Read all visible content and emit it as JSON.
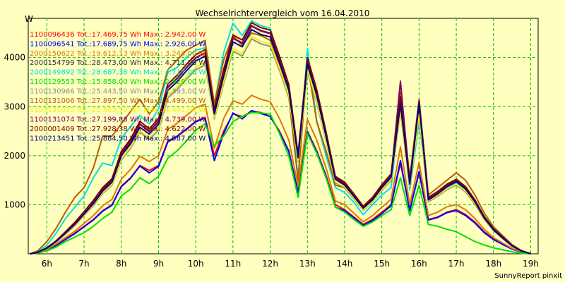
{
  "chart_data": {
    "type": "line",
    "title": "Wechselrichtervergleich vom 16.04.2010",
    "ylabel": "W",
    "xlabel": "",
    "x_ticks": [
      "6h",
      "7h",
      "8h",
      "9h",
      "10h",
      "11h",
      "12h",
      "13h",
      "14h",
      "15h",
      "16h",
      "17h",
      "18h",
      "19h"
    ],
    "y_ticks": [
      1000,
      2000,
      3000,
      4000
    ],
    "xlim": [
      5.5,
      19.2
    ],
    "ylim": [
      0,
      4800
    ],
    "grid": true,
    "legend_placement": "top-left",
    "x": [
      5.55,
      5.75,
      6.0,
      6.25,
      6.5,
      6.75,
      7.0,
      7.25,
      7.5,
      7.75,
      8.0,
      8.25,
      8.5,
      8.75,
      9.0,
      9.25,
      9.5,
      9.75,
      10.0,
      10.25,
      10.5,
      10.75,
      11.0,
      11.25,
      11.5,
      11.75,
      12.0,
      12.25,
      12.5,
      12.75,
      13.0,
      13.25,
      13.5,
      13.75,
      14.0,
      14.25,
      14.5,
      14.75,
      15.0,
      15.25,
      15.5,
      15.75,
      16.0,
      16.25,
      16.5,
      16.75,
      17.0,
      17.25,
      17.5,
      17.75,
      18.0,
      18.25,
      18.5,
      18.75,
      19.0
    ],
    "series": [
      {
        "name": "1100096436 Tot.:17.469,75 Wh Max.: 2.942,00 W",
        "color": "#ff0000",
        "values": [
          0,
          20,
          80,
          180,
          300,
          420,
          560,
          700,
          880,
          1000,
          1380,
          1550,
          1800,
          1700,
          1800,
          2300,
          2400,
          2550,
          2700,
          2780,
          2000,
          2500,
          2850,
          2800,
          2900,
          2880,
          2800,
          2500,
          2100,
          1250,
          2500,
          2100,
          1600,
          1000,
          900,
          750,
          600,
          700,
          850,
          1000,
          1850,
          900,
          1650,
          700,
          750,
          850,
          900,
          800,
          650,
          450,
          300,
          200,
          100,
          40,
          0
        ]
      },
      {
        "name": "1100096541 Tot.:17.689,75 Wh Max.: 2.926,00 W",
        "color": "#0000ff",
        "values": [
          0,
          20,
          75,
          170,
          290,
          410,
          550,
          690,
          870,
          990,
          1370,
          1540,
          1790,
          1650,
          1780,
          2280,
          2390,
          2540,
          2690,
          2770,
          1900,
          2450,
          2870,
          2750,
          2920,
          2860,
          2800,
          2480,
          2090,
          1250,
          2480,
          2080,
          1580,
          950,
          880,
          730,
          580,
          680,
          820,
          980,
          1900,
          880,
          1680,
          690,
          740,
          840,
          880,
          780,
          630,
          430,
          290,
          190,
          95,
          35,
          0
        ]
      },
      {
        "name": "2000150622 Tot.:19.612,13 Wh Max.: 3.244,00 W",
        "color": "#e07800",
        "values": [
          0,
          25,
          90,
          200,
          330,
          460,
          620,
          780,
          980,
          1110,
          1520,
          1720,
          1990,
          1880,
          2000,
          2540,
          2660,
          2820,
          2980,
          3050,
          2150,
          2760,
          3120,
          3050,
          3230,
          3150,
          3100,
          2760,
          2320,
          1380,
          2740,
          2320,
          1750,
          1080,
          1000,
          830,
          650,
          780,
          950,
          1110,
          2180,
          1000,
          1860,
          780,
          850,
          960,
          1000,
          900,
          720,
          500,
          330,
          220,
          110,
          40,
          0
        ]
      },
      {
        "name": "2000154799 Tot.:28.473,00 Wh Max.: 4.711,00 W",
        "color": "#303030",
        "values": [
          0,
          30,
          120,
          260,
          440,
          620,
          840,
          1060,
          1320,
          1500,
          2050,
          2300,
          2650,
          2500,
          2700,
          3400,
          3580,
          3800,
          4000,
          4100,
          2900,
          3700,
          4400,
          4300,
          4650,
          4550,
          4500,
          3980,
          3400,
          2000,
          3950,
          3300,
          2450,
          1550,
          1430,
          1200,
          950,
          1130,
          1380,
          1600,
          3100,
          1450,
          3000,
          1130,
          1250,
          1400,
          1500,
          1350,
          1080,
          750,
          500,
          330,
          165,
          60,
          0
        ]
      },
      {
        "name": "2000149892 Tot.:28.687,38 Wh Max.: 4.717,00 W",
        "color": "#00e0e0",
        "values": [
          0,
          40,
          180,
          420,
          720,
          950,
          1180,
          1550,
          1850,
          1800,
          2350,
          2600,
          2820,
          2650,
          2950,
          3700,
          3800,
          4000,
          4150,
          4200,
          3050,
          4100,
          4700,
          4450,
          4750,
          4650,
          4600,
          3950,
          3250,
          1550,
          4180,
          2700,
          2000,
          1350,
          1250,
          1050,
          800,
          1000,
          1200,
          1350,
          3050,
          1300,
          2700,
          1150,
          1250,
          1350,
          1450,
          1300,
          1050,
          750,
          500,
          330,
          165,
          60,
          0
        ]
      },
      {
        "name": "1100129553 Tot.:15.858,00 Wh Max.: 2.929,00 W",
        "color": "#00e000",
        "values": [
          0,
          15,
          60,
          140,
          250,
          340,
          430,
          560,
          720,
          850,
          1180,
          1320,
          1550,
          1430,
          1580,
          1950,
          2100,
          2300,
          2520,
          2650,
          2200,
          2400,
          2700,
          2800,
          2880,
          2870,
          2850,
          2450,
          2000,
          1150,
          2450,
          2050,
          1550,
          950,
          850,
          700,
          560,
          650,
          780,
          900,
          1550,
          780,
          1400,
          600,
          560,
          500,
          450,
          350,
          250,
          180,
          120,
          80,
          40,
          10,
          0
        ]
      },
      {
        "name": "1100130966 Tot.:25.443,50 Wh Max.: 4.393,00 W",
        "color": "#909090",
        "values": [
          0,
          28,
          110,
          240,
          400,
          570,
          780,
          980,
          1230,
          1400,
          1910,
          2150,
          2480,
          2330,
          2520,
          3180,
          3350,
          3560,
          3750,
          3850,
          2750,
          3470,
          4130,
          4030,
          4380,
          4280,
          4230,
          3740,
          3190,
          1880,
          3700,
          3090,
          2300,
          1450,
          1340,
          1120,
          890,
          1060,
          1290,
          1500,
          2900,
          1360,
          2800,
          1060,
          1170,
          1310,
          1400,
          1260,
          1010,
          700,
          470,
          310,
          155,
          56,
          0
        ]
      },
      {
        "name": "1100131006 Tot.:27.897,50 Wh Max.: 4.499,00 W",
        "color": "#b06000",
        "values": [
          0,
          60,
          250,
          520,
          850,
          1150,
          1350,
          1750,
          2400,
          2400,
          2650,
          2900,
          3150,
          2850,
          3100,
          3750,
          3950,
          4150,
          4250,
          4350,
          3050,
          3950,
          4450,
          4250,
          4500,
          4450,
          4350,
          3850,
          3200,
          1500,
          3900,
          2700,
          2100,
          1400,
          1350,
          1150,
          950,
          1150,
          1350,
          1500,
          3300,
          1550,
          3150,
          1200,
          1350,
          1500,
          1650,
          1500,
          1200,
          830,
          550,
          370,
          185,
          68,
          0
        ]
      },
      {
        "name": "1100131025 Tot.:25.863,50 Wh Max.: 4.441,00 W",
        "color": "#f0f000",
        "values": [
          0,
          28,
          110,
          245,
          410,
          580,
          790,
          1000,
          1250,
          1420,
          1940,
          2180,
          2510,
          2360,
          2560,
          3230,
          3400,
          3610,
          3800,
          3900,
          2780,
          3520,
          4180,
          4080,
          4430,
          4330,
          4280,
          3790,
          3230,
          1900,
          3750,
          3130,
          2330,
          1470,
          1360,
          1140,
          900,
          1070,
          1310,
          1520,
          2950,
          1380,
          2850,
          1080,
          1190,
          1330,
          1420,
          1280,
          1030,
          710,
          480,
          320,
          160,
          57,
          0
        ]
      },
      {
        "name": "1100131074 Tot.:27.199,88 Wh Max.: 4.739,00 W",
        "color": "#800060",
        "values": [
          0,
          30,
          118,
          255,
          430,
          610,
          830,
          1050,
          1310,
          1490,
          2040,
          2290,
          2640,
          2490,
          2690,
          3390,
          3570,
          3790,
          3990,
          4090,
          2890,
          3690,
          4390,
          4290,
          4640,
          4540,
          4490,
          3970,
          3390,
          1990,
          3940,
          3290,
          2440,
          1540,
          1420,
          1190,
          940,
          1120,
          1370,
          1590,
          3520,
          1440,
          3120,
          1120,
          1240,
          1390,
          1490,
          1340,
          1070,
          740,
          490,
          320,
          160,
          59,
          0
        ]
      },
      {
        "name": "2000001409 Tot.:27.928,38 Wh Max.: 4.622,00 W",
        "color": "#800000",
        "values": [
          0,
          32,
          125,
          265,
          450,
          640,
          860,
          1090,
          1350,
          1530,
          2090,
          2340,
          2700,
          2550,
          2750,
          3460,
          3640,
          3860,
          4060,
          4160,
          2950,
          3760,
          4460,
          4360,
          4710,
          4610,
          4560,
          4030,
          3450,
          2030,
          4000,
          3350,
          2490,
          1580,
          1460,
          1220,
          970,
          1150,
          1410,
          1630,
          3200,
          1480,
          3080,
          1150,
          1270,
          1420,
          1520,
          1370,
          1100,
          760,
          510,
          340,
          170,
          62,
          0
        ]
      },
      {
        "name": "1100213451 Tot.:25.884,50 Wh Max.: 4.587,00 W",
        "color": "#000080",
        "values": [
          0,
          29,
          114,
          250,
          420,
          600,
          810,
          1020,
          1280,
          1460,
          2000,
          2240,
          2580,
          2440,
          2640,
          3330,
          3510,
          3730,
          3930,
          4030,
          2850,
          3620,
          4320,
          4220,
          4570,
          4470,
          4420,
          3900,
          3340,
          1960,
          3870,
          3230,
          2400,
          1520,
          1400,
          1170,
          930,
          1100,
          1350,
          1560,
          3050,
          1420,
          3050,
          1100,
          1220,
          1370,
          1470,
          1320,
          1060,
          730,
          490,
          320,
          160,
          58,
          0
        ]
      }
    ]
  },
  "footer": "SunnyReport pinxit"
}
